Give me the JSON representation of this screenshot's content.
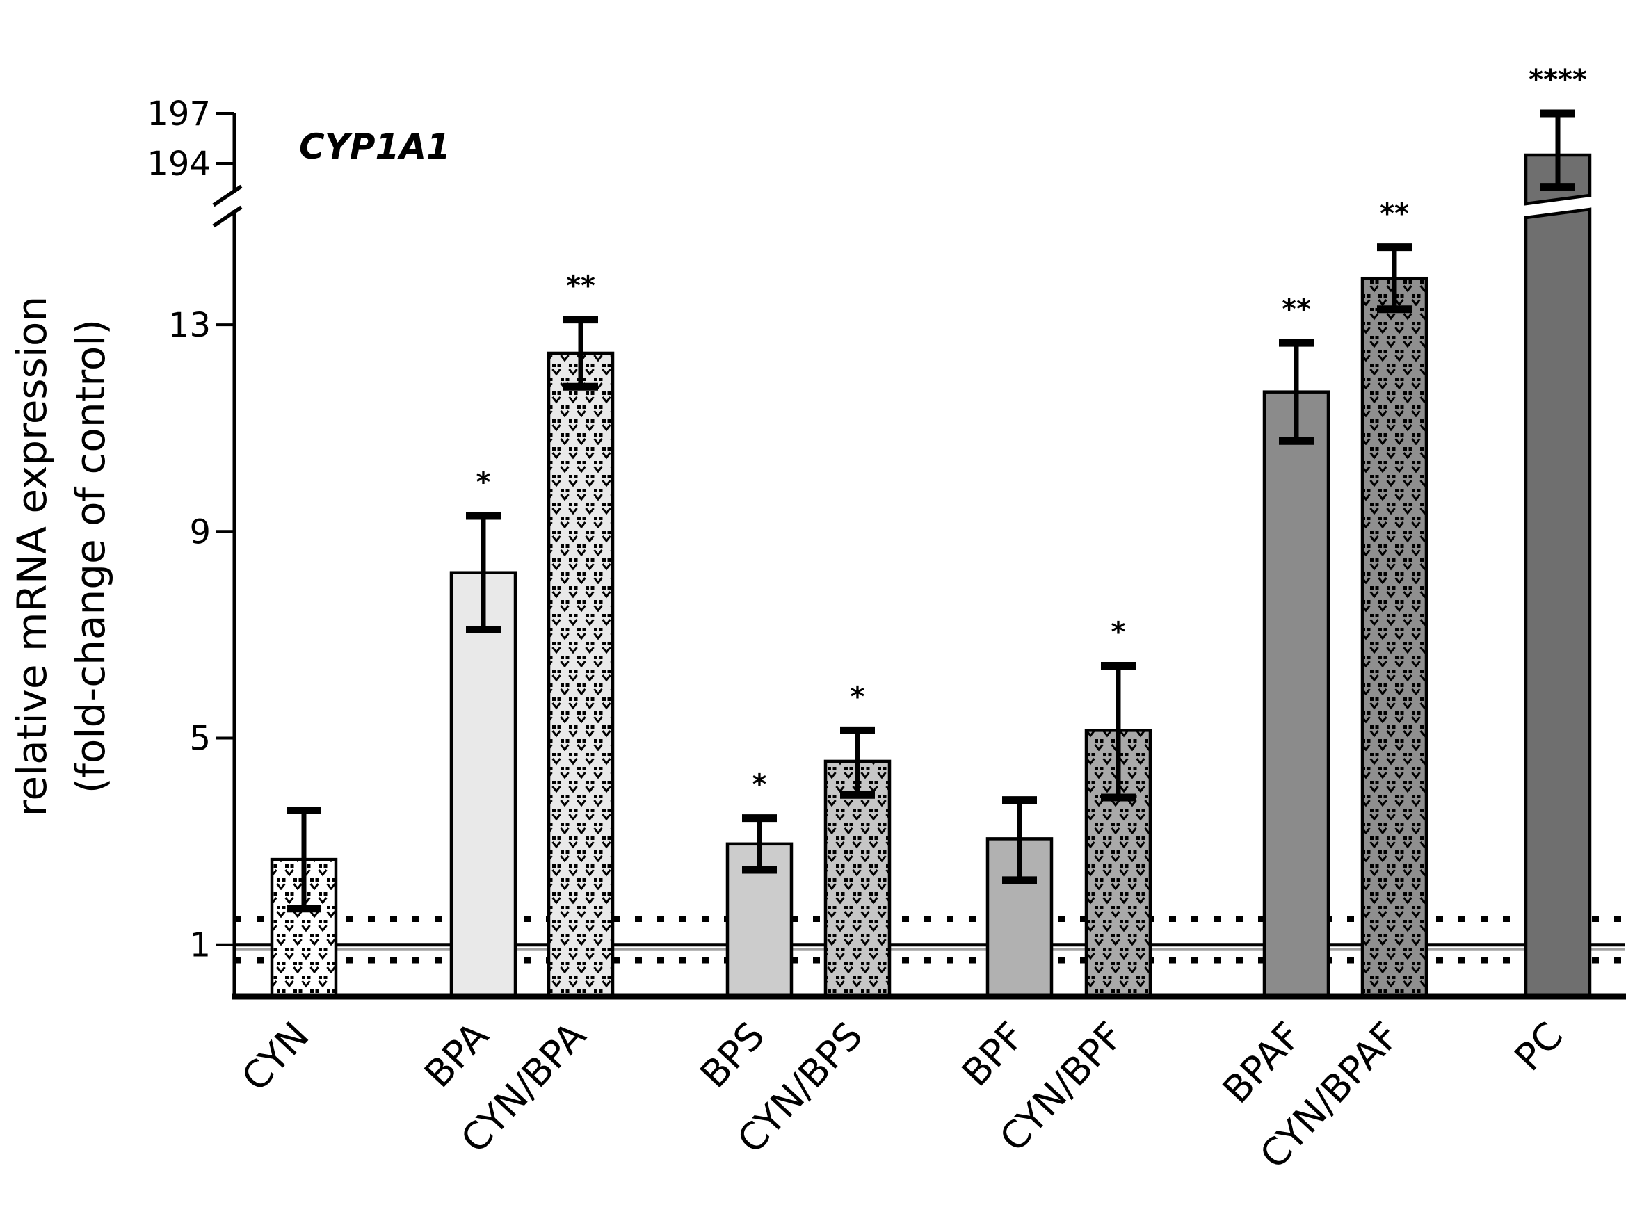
{
  "chart": {
    "title": "CYP1A1",
    "ylabel_line1": "relative mRNA expression",
    "ylabel_line2": "(fold-change of control)"
  },
  "chart_data": {
    "type": "bar",
    "title": "CYP1A1",
    "ylabel": "relative mRNA expression (fold-change of control)",
    "categories": [
      "CYN",
      "BPA",
      "CYN/BPA",
      "BPS",
      "CYN/BPS",
      "BPF",
      "CYN/BPF",
      "BPAF",
      "CYN/BPAF",
      "PC"
    ],
    "values": [
      2.65,
      8.2,
      12.45,
      2.95,
      4.55,
      3.05,
      5.15,
      11.7,
      13.9,
      194.5
    ],
    "error_up": [
      0.95,
      1.1,
      0.65,
      0.5,
      0.6,
      0.75,
      1.25,
      0.95,
      0.6,
      2.5
    ],
    "error_down": [
      0.95,
      1.1,
      0.65,
      0.5,
      0.65,
      0.8,
      1.3,
      0.95,
      0.6,
      1.9
    ],
    "significance": [
      "",
      "*",
      "**",
      "*",
      "*",
      "",
      "*",
      "**",
      "**",
      "****"
    ],
    "y_axis": {
      "linear_ticks": [
        1,
        5,
        9,
        13
      ],
      "upper_ticks": [
        194,
        197
      ],
      "axis_break": true,
      "linear_range_max": 15.5,
      "upper_range": [
        192,
        197.5
      ]
    },
    "control_lines": {
      "solid_at": 1,
      "dotted_at": [
        1.5,
        0.7
      ]
    },
    "broken_bar_index": 9,
    "legend": "none",
    "grid": "off",
    "bar_styles": [
      {
        "fill": "#ffffff",
        "pattern": true
      },
      {
        "fill": "#e9e9e9",
        "pattern": false
      },
      {
        "fill": "#e9e9e9",
        "pattern": true
      },
      {
        "fill": "#cccccc",
        "pattern": false
      },
      {
        "fill": "#c6c6c6",
        "pattern": true
      },
      {
        "fill": "#b1b1b1",
        "pattern": false
      },
      {
        "fill": "#a9a9a9",
        "pattern": true
      },
      {
        "fill": "#8b8b8b",
        "pattern": false
      },
      {
        "fill": "#8f8f8f",
        "pattern": true
      },
      {
        "fill": "#6f6f6f",
        "pattern": false
      }
    ],
    "pattern_glyph_color": "#000000",
    "line_color": "#000000"
  }
}
